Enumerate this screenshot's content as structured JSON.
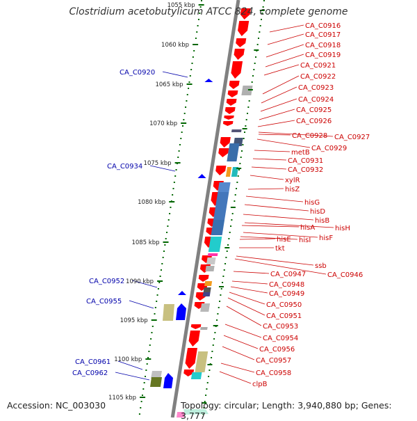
{
  "title": "Clostridium acetobutylicum ATCC 824, complete genome",
  "footer": {
    "accession": "Accession: NC_003030",
    "topology": "Topology: circular; Length: 3,940,880 bp; Genes: 3,777"
  },
  "colors": {
    "backbone": "#808080",
    "forward_gene": "#ff0000",
    "reverse_gene": "#0000ff",
    "forward_label": "#cc0000",
    "reverse_label": "#0000aa",
    "tick": "#006600",
    "text": "#333333"
  },
  "scale_labels": [
    "1055 kbp",
    "1060 kbp",
    "1065 kbp",
    "1070 kbp",
    "1075 kbp",
    "1080 kbp",
    "1085 kbp",
    "1090 kbp",
    "1095 kbp",
    "1100 kbp",
    "1105 kbp"
  ],
  "forward_genes": [
    "CA_C0916",
    "CA_C0917",
    "CA_C0918",
    "CA_C0919",
    "CA_C0921",
    "CA_C0922",
    "CA_C0923",
    "CA_C0924",
    "CA_C0925",
    "CA_C0926",
    "CA_C0927",
    "CA_C0928",
    "CA_C0929",
    "metB",
    "CA_C0931",
    "CA_C0932",
    "xylR",
    "hisZ",
    "hisG",
    "hisD",
    "hisB",
    "hisH",
    "hisA",
    "hisF",
    "hisI",
    "hisE",
    "tkt",
    "ssb",
    "CA_C0946",
    "CA_C0947",
    "CA_C0948",
    "CA_C0949",
    "CA_C0950",
    "CA_C0951",
    "CA_C0953",
    "CA_C0954",
    "CA_C0956",
    "CA_C0957",
    "CA_C0958",
    "clpB"
  ],
  "reverse_genes": [
    "CA_C0920",
    "CA_C0934",
    "CA_C0952",
    "CA_C0955",
    "CA_C0961",
    "CA_C0962"
  ]
}
